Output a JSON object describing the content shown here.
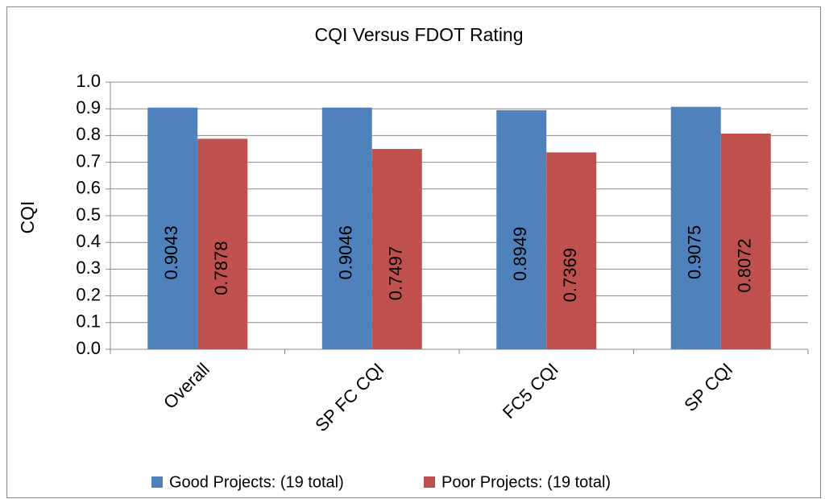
{
  "chart_data": {
    "type": "bar",
    "title": "CQI Versus FDOT Rating",
    "ylabel": "CQI",
    "categories": [
      "Overall",
      "SP FC CQI",
      "FC5 CQI",
      "SP CQI"
    ],
    "series": [
      {
        "name": "Good Projects: (19 total)",
        "color": "#4f81bd",
        "values": [
          0.9043,
          0.9046,
          0.8949,
          0.9075
        ]
      },
      {
        "name": "Poor Projects: (19 total)",
        "color": "#c0504d",
        "values": [
          0.7878,
          0.7497,
          0.7369,
          0.8072
        ]
      }
    ],
    "ylim": [
      0,
      1
    ],
    "yticks": [
      {
        "value": 0,
        "label": "0.0"
      },
      0.1,
      0.2,
      0.3,
      0.4,
      0.5,
      0.6,
      0.7,
      0.8,
      0.9,
      {
        "value": 1,
        "label": "1.0"
      }
    ],
    "grid": true,
    "legend": "bottom"
  }
}
